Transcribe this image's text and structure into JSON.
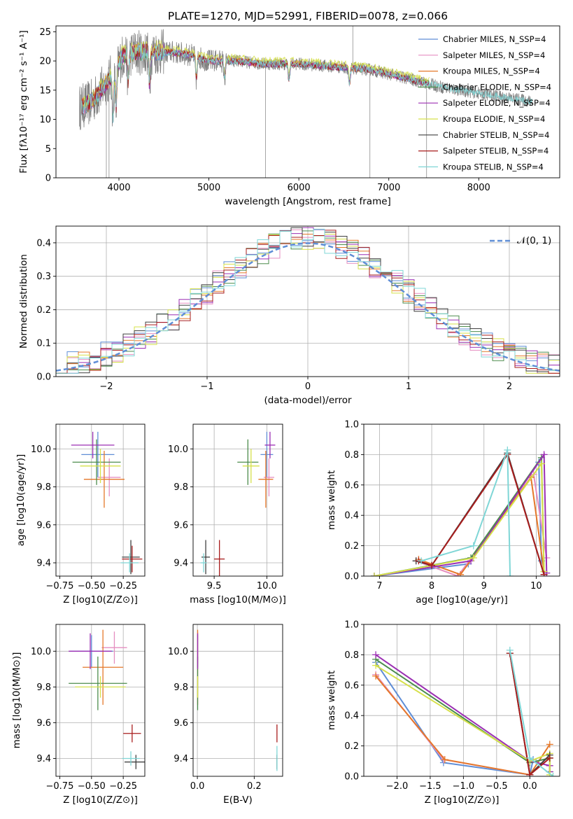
{
  "colors": [
    "#5f8ed6",
    "#e58ec0",
    "#e5782a",
    "#4c8c4c",
    "#9b2fb3",
    "#d6e04a",
    "#404040",
    "#a81d1d",
    "#7fd6d6"
  ],
  "chart_data": [
    {
      "id": "spectrum",
      "type": "line",
      "title": "PLATE=1270, MJD=52991, FIBERID=0078, z=0.066",
      "xlabel": "wavelength [Angstrom, rest frame]",
      "ylabel": "Flux [fλ10⁻¹⁷ erg cm⁻² s⁻¹ A⁻¹]",
      "xlim": [
        3300,
        8900
      ],
      "ylim": [
        0,
        26
      ],
      "xticks": [
        4000,
        5000,
        6000,
        7000,
        8000
      ],
      "yticks": [
        0,
        5,
        10,
        15,
        20,
        25
      ],
      "continuum": {
        "x": [
          3560,
          3700,
          3900,
          4050,
          4200,
          4400,
          4600,
          4800,
          5000,
          5300,
          5600,
          6000,
          6400,
          6800,
          7200,
          7600,
          8000,
          8400,
          8600
        ],
        "y": [
          12,
          13,
          17,
          21,
          21.5,
          21.5,
          21.5,
          21,
          20,
          20,
          19.5,
          19.5,
          19,
          18.5,
          17,
          15.5,
          14.5,
          13.5,
          13
        ]
      },
      "legend": [
        "Chabrier MILES, N_SSP=4",
        "Salpeter MILES, N_SSP=4",
        "Kroupa MILES, N_SSP=4",
        "Chabrier ELODIE, N_SSP=4",
        "Salpeter ELODIE, N_SSP=4",
        "Kroupa ELODIE, N_SSP=4",
        "Chabrier STELIB, N_SSP=4",
        "Salpeter STELIB, N_SSP=4",
        "Kroupa STELIB, N_SSP=4"
      ],
      "legend_position": "upper-right"
    },
    {
      "id": "residuals",
      "type": "line",
      "xlabel": "(data-model)/error",
      "ylabel": "Normed distribution",
      "xlim": [
        -2.5,
        2.5
      ],
      "ylim": [
        0,
        0.45
      ],
      "xticks": [
        -2,
        -1,
        0,
        1,
        2
      ],
      "yticks": [
        0.0,
        0.1,
        0.2,
        0.3,
        0.4
      ],
      "reference_label": "𝒩(0, 1)",
      "bins": 45,
      "legend_position": "upper-right"
    },
    {
      "id": "age_vs_Z",
      "type": "scatter",
      "xlabel": "Z [log10(Z/Z⊙)]",
      "ylabel": "age  [log10(age/yr)]",
      "xlim": [
        -0.78,
        -0.08
      ],
      "ylim": [
        9.33,
        10.13
      ],
      "xticks": [
        -0.75,
        -0.5,
        -0.25
      ],
      "yticks": [
        9.4,
        9.6,
        9.8,
        10.0
      ],
      "points": [
        {
          "x": -0.45,
          "y": 9.97,
          "xerr": 0.13,
          "yerr": 0.12
        },
        {
          "x": -0.36,
          "y": 9.85,
          "xerr": 0.09,
          "yerr": 0.1
        },
        {
          "x": -0.4,
          "y": 9.84,
          "xerr": 0.16,
          "yerr": 0.15
        },
        {
          "x": -0.46,
          "y": 9.93,
          "xerr": 0.19,
          "yerr": 0.12
        },
        {
          "x": -0.49,
          "y": 10.02,
          "xerr": 0.17,
          "yerr": 0.07
        },
        {
          "x": -0.43,
          "y": 9.91,
          "xerr": 0.16,
          "yerr": 0.09
        },
        {
          "x": -0.19,
          "y": 9.43,
          "xerr": 0.07,
          "yerr": 0.09
        },
        {
          "x": -0.18,
          "y": 9.42,
          "xerr": 0.08,
          "yerr": 0.07
        },
        {
          "x": -0.2,
          "y": 9.4,
          "xerr": 0.07,
          "yerr": 0.05
        }
      ]
    },
    {
      "id": "age_vs_mass",
      "type": "scatter",
      "xlabel": "mass [log10(M/M⊙)]",
      "ylabel": "",
      "xlim": [
        9.3,
        10.15
      ],
      "ylim": [
        9.33,
        10.13
      ],
      "xticks": [
        9.5,
        10.0
      ],
      "yticks": [
        9.4,
        9.6,
        9.8,
        10.0
      ],
      "points": [
        {
          "x": 10.0,
          "y": 9.97,
          "xerr": 0.06,
          "yerr": 0.12
        },
        {
          "x": 10.02,
          "y": 9.85,
          "xerr": 0.05,
          "yerr": 0.1
        },
        {
          "x": 9.99,
          "y": 9.84,
          "xerr": 0.07,
          "yerr": 0.15
        },
        {
          "x": 9.82,
          "y": 9.93,
          "xerr": 0.1,
          "yerr": 0.12
        },
        {
          "x": 10.03,
          "y": 10.02,
          "xerr": 0.05,
          "yerr": 0.07
        },
        {
          "x": 9.85,
          "y": 9.91,
          "xerr": 0.08,
          "yerr": 0.09
        },
        {
          "x": 9.42,
          "y": 9.43,
          "xerr": 0.04,
          "yerr": 0.09
        },
        {
          "x": 9.55,
          "y": 9.42,
          "xerr": 0.05,
          "yerr": 0.1
        },
        {
          "x": 9.4,
          "y": 9.4,
          "xerr": 0.03,
          "yerr": 0.05
        }
      ]
    },
    {
      "id": "weight_vs_age",
      "type": "line",
      "xlabel": "age  [log10(age/yr)]",
      "ylabel": "mass weight",
      "xlim": [
        6.7,
        10.45
      ],
      "ylim": [
        0,
        1.0
      ],
      "xticks": [
        7,
        8,
        9,
        10
      ],
      "yticks": [
        0.0,
        0.2,
        0.4,
        0.6,
        0.8,
        1.0
      ],
      "series": [
        {
          "x": [
            6.9,
            8.7,
            10.05,
            10.1
          ],
          "y": [
            0.0,
            0.08,
            0.75,
            0.1
          ]
        },
        {
          "x": [
            7.7,
            8.5,
            9.95,
            10.2
          ],
          "y": [
            0.1,
            0.0,
            0.67,
            0.12
          ]
        },
        {
          "x": [
            7.75,
            8.55,
            9.9,
            10.15
          ],
          "y": [
            0.11,
            0.01,
            0.65,
            0.03
          ]
        },
        {
          "x": [
            6.9,
            8.75,
            10.1,
            10.15
          ],
          "y": [
            0.0,
            0.12,
            0.78,
            0.03
          ]
        },
        {
          "x": [
            6.9,
            8.75,
            10.15,
            10.2
          ],
          "y": [
            0.0,
            0.1,
            0.8,
            0.02
          ]
        },
        {
          "x": [
            6.9,
            8.8,
            10.1,
            10.15
          ],
          "y": [
            0.0,
            0.12,
            0.74,
            0.03
          ]
        },
        {
          "x": [
            7.7,
            8.0,
            9.45,
            10.15
          ],
          "y": [
            0.1,
            0.07,
            0.81,
            0.01
          ]
        },
        {
          "x": [
            7.75,
            8.0,
            9.45,
            10.15
          ],
          "y": [
            0.1,
            0.07,
            0.8,
            0.01
          ]
        },
        {
          "x": [
            7.8,
            8.8,
            9.45,
            9.5
          ],
          "y": [
            0.1,
            0.2,
            0.83,
            0.0
          ]
        }
      ]
    },
    {
      "id": "mass_vs_Z",
      "type": "scatter",
      "xlabel": "Z [log10(Z/Z⊙)]",
      "ylabel": "mass [log10(M/M⊙)]",
      "xlim": [
        -0.78,
        -0.08
      ],
      "ylim": [
        9.3,
        10.15
      ],
      "xticks": [
        -0.75,
        -0.5,
        -0.25
      ],
      "yticks": [
        9.4,
        9.6,
        9.8,
        10.0
      ],
      "points": [
        {
          "x": -0.5,
          "y": 10.0,
          "xerr": 0.17,
          "yerr": 0.09
        },
        {
          "x": -0.32,
          "y": 10.02,
          "xerr": 0.1,
          "yerr": 0.09
        },
        {
          "x": -0.41,
          "y": 9.91,
          "xerr": 0.16,
          "yerr": 0.21
        },
        {
          "x": -0.45,
          "y": 9.82,
          "xerr": 0.23,
          "yerr": 0.15
        },
        {
          "x": -0.51,
          "y": 10.0,
          "xerr": 0.17,
          "yerr": 0.1
        },
        {
          "x": -0.43,
          "y": 9.8,
          "xerr": 0.2,
          "yerr": 0.06
        },
        {
          "x": -0.15,
          "y": 9.38,
          "xerr": 0.09,
          "yerr": 0.04
        },
        {
          "x": -0.18,
          "y": 9.54,
          "xerr": 0.07,
          "yerr": 0.05
        },
        {
          "x": -0.19,
          "y": 9.4,
          "xerr": 0.07,
          "yerr": 0.04
        }
      ]
    },
    {
      "id": "mass_vs_EBV",
      "type": "scatter",
      "xlabel": "E(B-V)",
      "ylabel": "",
      "xlim": [
        -0.015,
        0.3
      ],
      "ylim": [
        9.3,
        10.15
      ],
      "xticks": [
        0.0,
        0.2
      ],
      "yticks": [
        9.4,
        9.6,
        9.8,
        10.0
      ],
      "points": [
        {
          "x": 0.001,
          "y": 10.0,
          "xerr": 0,
          "yerr": 0.09
        },
        {
          "x": 0.001,
          "y": 10.02,
          "xerr": 0,
          "yerr": 0.09
        },
        {
          "x": 0.001,
          "y": 9.91,
          "xerr": 0,
          "yerr": 0.21
        },
        {
          "x": 0.001,
          "y": 9.82,
          "xerr": 0,
          "yerr": 0.15
        },
        {
          "x": 0.001,
          "y": 10.0,
          "xerr": 0,
          "yerr": 0.1
        },
        {
          "x": 0.001,
          "y": 9.8,
          "xerr": 0,
          "yerr": 0.06
        },
        {
          "x": 0.28,
          "y": 9.38,
          "xerr": 0,
          "yerr": 0.04
        },
        {
          "x": 0.28,
          "y": 9.54,
          "xerr": 0,
          "yerr": 0.05
        },
        {
          "x": 0.28,
          "y": 9.4,
          "xerr": 0,
          "yerr": 0.07
        }
      ]
    },
    {
      "id": "weight_vs_Z",
      "type": "line",
      "xlabel": "Z [log10(Z/Z⊙)]",
      "ylabel": "mass weight",
      "xlim": [
        -2.5,
        0.45
      ],
      "ylim": [
        0,
        1.0
      ],
      "xticks": [
        -2.0,
        -1.5,
        -1.0,
        -0.5,
        0.0
      ],
      "yticks": [
        0.0,
        0.2,
        0.4,
        0.6,
        0.8,
        1.0
      ],
      "series": [
        {
          "x": [
            -2.32,
            -1.3,
            0.0,
            0.05
          ],
          "y": [
            0.75,
            0.09,
            0.01,
            0.11
          ]
        },
        {
          "x": [
            -2.32,
            -1.3,
            0.0,
            0.3
          ],
          "y": [
            0.67,
            0.11,
            0.01,
            0.12
          ]
        },
        {
          "x": [
            -2.32,
            -1.28,
            0.0,
            0.3
          ],
          "y": [
            0.66,
            0.11,
            0.01,
            0.21
          ]
        },
        {
          "x": [
            -2.32,
            0.0,
            0.3,
            0.3
          ],
          "y": [
            0.77,
            0.09,
            0.12,
            0.03
          ]
        },
        {
          "x": [
            -2.32,
            0.0,
            0.3,
            0.3
          ],
          "y": [
            0.8,
            0.1,
            0.07,
            0.03
          ]
        },
        {
          "x": [
            -2.32,
            0.0,
            0.3,
            0.3
          ],
          "y": [
            0.73,
            0.1,
            0.15,
            0.01
          ]
        },
        {
          "x": [
            -0.3,
            0.0,
            0.3
          ],
          "y": [
            0.81,
            0.01,
            0.14
          ]
        },
        {
          "x": [
            -0.3,
            0.0,
            0.3
          ],
          "y": [
            0.81,
            0.01,
            0.12
          ]
        },
        {
          "x": [
            -0.3,
            0.0,
            0.35
          ],
          "y": [
            0.83,
            0.12,
            0.0
          ]
        }
      ]
    }
  ]
}
